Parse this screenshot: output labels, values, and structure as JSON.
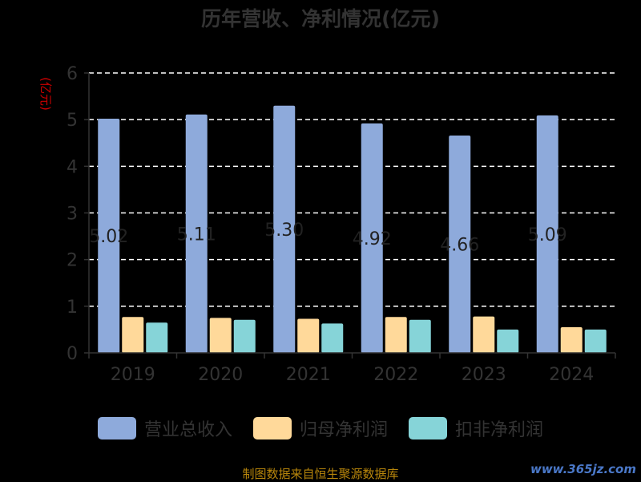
{
  "colors": {
    "background": "#000000",
    "axis": "#333333",
    "grid": "#ffffff",
    "ylabel": "#cc0000",
    "footer": "#b8860b",
    "watermark": "#4a78c8"
  },
  "chart_data": {
    "type": "bar",
    "title": "历年营收、净利情况(亿元)",
    "ylabel": "(亿元)",
    "xlabel": "",
    "categories": [
      "2019",
      "2020",
      "2021",
      "2022",
      "2023",
      "2024"
    ],
    "ylim": [
      0,
      6
    ],
    "yticks": [
      0,
      1,
      2,
      3,
      4,
      5,
      6
    ],
    "grid": true,
    "legend_position": "bottom",
    "series": [
      {
        "name": "营业总收入",
        "color": "#8eaadb",
        "values": [
          5.02,
          5.11,
          5.3,
          4.92,
          4.66,
          5.09
        ],
        "labels": [
          "5.02",
          "5.11",
          "5.30",
          "4.92",
          "4.66",
          "5.09"
        ]
      },
      {
        "name": "归母净利润",
        "color": "#ffd99a",
        "values": [
          0.77,
          0.75,
          0.73,
          0.77,
          0.78,
          0.55
        ]
      },
      {
        "name": "扣非净利润",
        "color": "#86d4d8",
        "values": [
          0.65,
          0.71,
          0.63,
          0.71,
          0.5,
          0.5
        ]
      }
    ]
  },
  "footer": {
    "text": "制图数据来自恒生聚源数据库"
  },
  "watermark": {
    "text": "www.365jz.com"
  }
}
